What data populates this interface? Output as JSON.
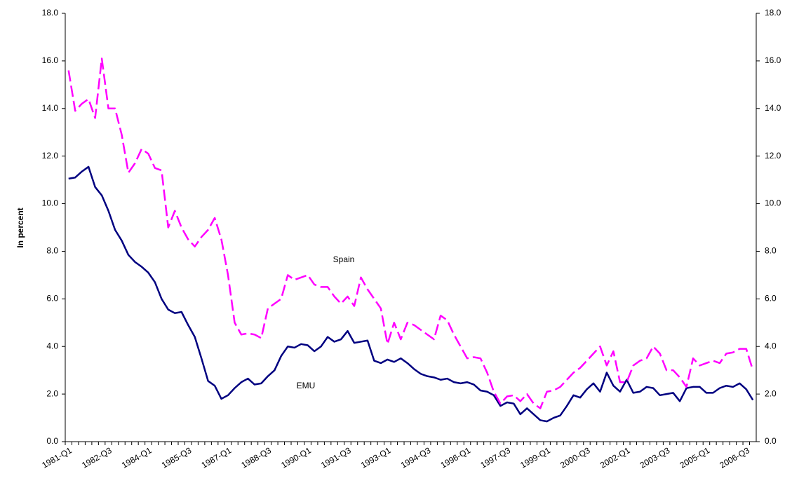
{
  "chart_data": {
    "type": "line",
    "y_axis_label": "In percent",
    "categories": [
      "1981-Q1",
      null,
      null,
      null,
      null,
      null,
      "1982-Q3",
      null,
      null,
      null,
      null,
      null,
      "1984-Q1",
      null,
      null,
      null,
      null,
      null,
      "1985-Q3",
      null,
      null,
      null,
      null,
      null,
      "1987-Q1",
      null,
      null,
      null,
      null,
      null,
      "1988-Q3",
      null,
      null,
      null,
      null,
      null,
      "1990-Q1",
      null,
      null,
      null,
      null,
      null,
      "1991-Q3",
      null,
      null,
      null,
      null,
      null,
      "1993-Q1",
      null,
      null,
      null,
      null,
      null,
      "1994-Q3",
      null,
      null,
      null,
      null,
      null,
      "1996-Q1",
      null,
      null,
      null,
      null,
      null,
      "1997-Q3",
      null,
      null,
      null,
      null,
      null,
      "1999-Q1",
      null,
      null,
      null,
      null,
      null,
      "2000-Q3",
      null,
      null,
      null,
      null,
      null,
      "2002-Q1",
      null,
      null,
      null,
      null,
      null,
      "2003-Q3",
      null,
      null,
      null,
      null,
      null,
      "2005-Q1",
      null,
      null,
      null,
      null,
      null,
      "2006-Q3",
      null
    ],
    "series": [
      {
        "name": "EMU",
        "color": "#000080",
        "dashed": false,
        "values": [
          11.05,
          11.1,
          11.35,
          11.55,
          10.7,
          10.35,
          9.7,
          8.9,
          8.45,
          7.85,
          7.55,
          7.35,
          7.1,
          6.7,
          6.0,
          5.55,
          5.4,
          5.45,
          4.9,
          4.4,
          3.5,
          2.55,
          2.35,
          1.8,
          1.95,
          2.25,
          2.5,
          2.65,
          2.4,
          2.45,
          2.75,
          3.0,
          3.6,
          4.0,
          3.95,
          4.1,
          4.05,
          3.8,
          4.0,
          4.4,
          4.2,
          4.3,
          4.65,
          4.15,
          4.2,
          4.25,
          3.4,
          3.3,
          3.45,
          3.35,
          3.5,
          3.3,
          3.05,
          2.85,
          2.75,
          2.7,
          2.6,
          2.65,
          2.5,
          2.45,
          2.5,
          2.4,
          2.15,
          2.1,
          1.95,
          1.5,
          1.65,
          1.6,
          1.15,
          1.4,
          1.15,
          0.9,
          0.85,
          1.0,
          1.1,
          1.5,
          1.95,
          1.85,
          2.2,
          2.45,
          2.1,
          2.9,
          2.35,
          2.1,
          2.6,
          2.05,
          2.1,
          2.3,
          2.25,
          1.95,
          2.0,
          2.05,
          1.7,
          2.25,
          2.3,
          2.3,
          2.05,
          2.05,
          2.25,
          2.35,
          2.3,
          2.45,
          2.2,
          1.75
        ]
      },
      {
        "name": "Spain",
        "color": "#ff00ff",
        "dashed": true,
        "values": [
          15.6,
          13.9,
          14.2,
          14.4,
          13.6,
          16.1,
          14.0,
          14.0,
          12.9,
          11.3,
          11.7,
          12.3,
          12.1,
          11.5,
          11.4,
          9.0,
          9.7,
          9.0,
          8.5,
          8.2,
          8.6,
          8.9,
          9.4,
          8.5,
          7.0,
          5.0,
          4.5,
          4.55,
          4.5,
          4.35,
          5.6,
          5.8,
          6.0,
          7.0,
          6.8,
          6.9,
          7.0,
          6.6,
          6.5,
          6.5,
          6.1,
          5.8,
          6.1,
          5.7,
          6.9,
          6.4,
          6.0,
          5.6,
          4.1,
          5.0,
          4.3,
          5.0,
          4.9,
          4.7,
          4.5,
          4.3,
          5.3,
          5.1,
          4.5,
          4.0,
          3.5,
          3.55,
          3.5,
          2.9,
          2.1,
          1.6,
          1.9,
          1.95,
          1.7,
          2.0,
          1.6,
          1.4,
          2.1,
          2.15,
          2.3,
          2.6,
          2.9,
          3.1,
          3.4,
          3.7,
          4.0,
          3.2,
          3.8,
          2.5,
          2.5,
          3.2,
          3.4,
          3.5,
          4.0,
          3.7,
          3.0,
          3.0,
          2.7,
          2.3,
          3.5,
          3.2,
          3.3,
          3.4,
          3.3,
          3.7,
          3.75,
          3.9,
          3.9,
          3.0
        ]
      }
    ],
    "ylim": [
      0,
      18
    ],
    "yticks": [
      {
        "value": 0,
        "label": "0.0"
      },
      {
        "value": 2,
        "label": "2.0"
      },
      {
        "value": 4,
        "label": "4.0"
      },
      {
        "value": 6,
        "label": "6.0"
      },
      {
        "value": 8,
        "label": "8.0"
      },
      {
        "value": 10,
        "label": "10.0"
      },
      {
        "value": 12,
        "label": "12.0"
      },
      {
        "value": 14,
        "label": "14.0"
      },
      {
        "value": 16,
        "label": "16.0"
      },
      {
        "value": 18,
        "label": "18.0"
      }
    ],
    "y2lim": [
      0,
      18
    ],
    "y2ticks": [
      {
        "value": 0,
        "label": "0.0"
      },
      {
        "value": 2,
        "label": "2.0"
      },
      {
        "value": 4,
        "label": "4.0"
      },
      {
        "value": 6,
        "label": "6.0"
      },
      {
        "value": 8,
        "label": "8.0"
      },
      {
        "value": 10,
        "label": "10.0"
      },
      {
        "value": 12,
        "label": "12.0"
      },
      {
        "value": 14,
        "label": "14.0"
      },
      {
        "value": 16,
        "label": "16.0"
      },
      {
        "value": 18,
        "label": "18.0"
      }
    ],
    "grid": false
  }
}
